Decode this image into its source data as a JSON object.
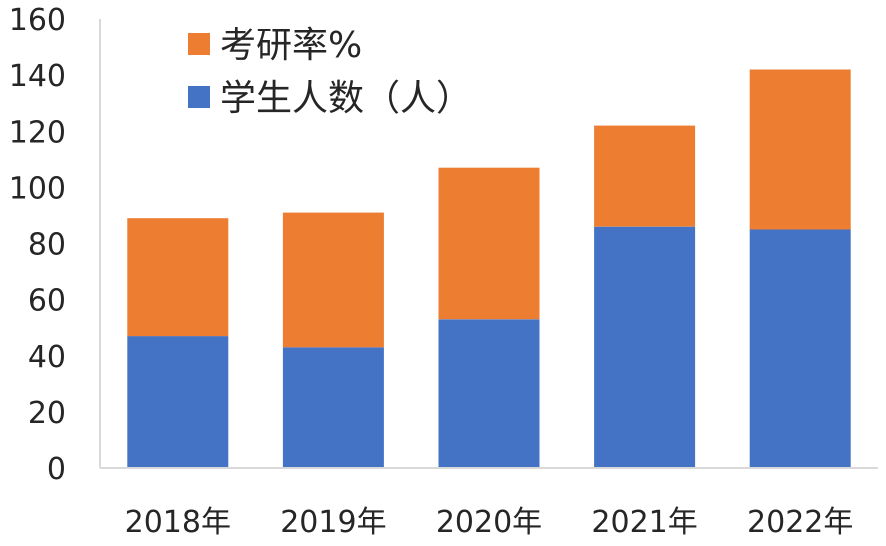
{
  "chart_data": {
    "type": "bar",
    "stacked": true,
    "categories": [
      "2018年",
      "2019年",
      "2020年",
      "2021年",
      "2022年"
    ],
    "series": [
      {
        "name": "学生人数（人）",
        "values": [
          47,
          43,
          53,
          86,
          85
        ],
        "color": "#4472c4"
      },
      {
        "name": "考研率%",
        "values": [
          42,
          48,
          54,
          36,
          57
        ],
        "color": "#ed7d31"
      }
    ],
    "ylim": [
      0,
      160
    ],
    "yticks": [
      0,
      20,
      40,
      60,
      80,
      100,
      120,
      140,
      160
    ],
    "grid": false,
    "legend": "top-left, inside plot",
    "legend_order": [
      "考研率%",
      "学生人数（人）"
    ]
  }
}
